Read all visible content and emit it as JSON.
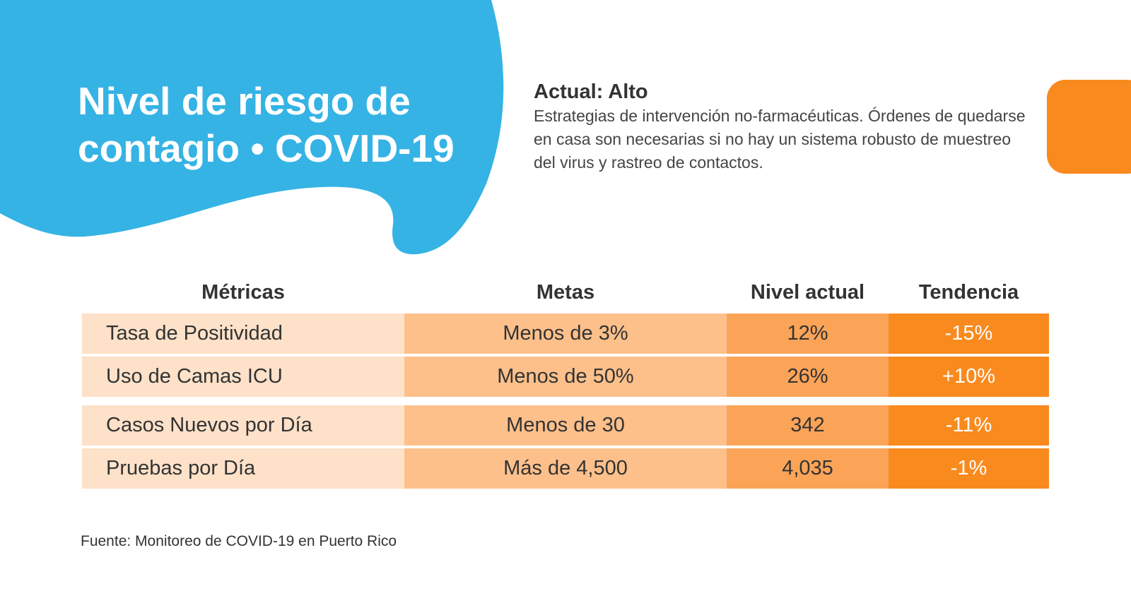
{
  "header": {
    "title_line1": "Nivel de riesgo de",
    "title_line2": "contagio • COVID-19"
  },
  "level": {
    "heading": "Actual: Alto",
    "description": "Estrategias de intervención no-farmacéuticas. Órdenes de quedarse en casa son necesarias si no hay un sistema robusto de muestreo del virus y rastreo de contactos."
  },
  "table": {
    "headers": [
      "Métricas",
      "Metas",
      "Nivel actual",
      "Tendencia"
    ],
    "rows": [
      [
        "Tasa de Positividad",
        "Menos de 3%",
        "12%",
        "-15%"
      ],
      [
        "Uso de Camas ICU",
        "Menos de 50%",
        "26%",
        "+10%"
      ],
      [
        "Casos Nuevos por Día",
        "Menos de 30",
        "342",
        "-11%"
      ],
      [
        "Pruebas por Día",
        "Más de 4,500",
        "4,035",
        "-1%"
      ]
    ]
  },
  "footer": {
    "source": "Fuente: Monitoreo de COVID-19 en Puerto Rico"
  },
  "colors": {
    "blob": "#35b3e5",
    "accent_orange": "#f98a1e",
    "col_metric": "#fde1c8",
    "col_goal": "#fdc08b",
    "col_current": "#fba457",
    "col_trend": "#f98a1e"
  }
}
